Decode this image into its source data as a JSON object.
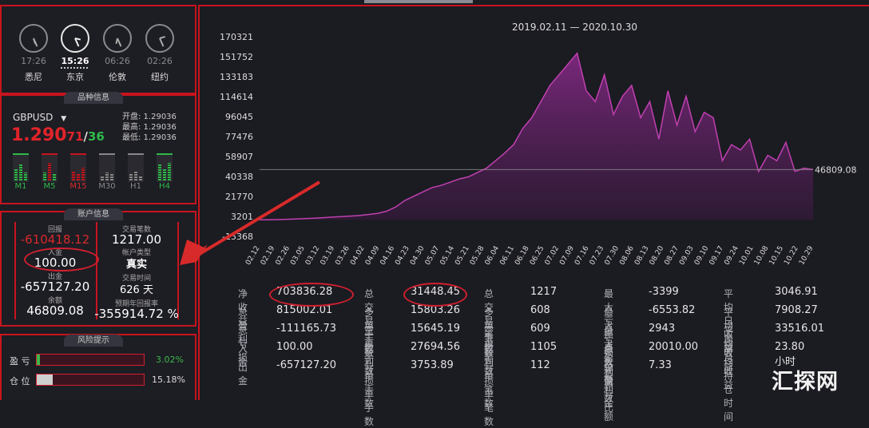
{
  "clocks": [
    {
      "time": "17:26",
      "city": "悉尼"
    },
    {
      "time": "15:26",
      "city": "东京"
    },
    {
      "time": "06:26",
      "city": "伦敦"
    },
    {
      "time": "02:26",
      "city": "纽约"
    }
  ],
  "symbol_section": {
    "title": "品种信息",
    "symbol": "GBPUSD",
    "price_main": "1.290",
    "price_sub": "71",
    "sep": "/",
    "price_sub2": "36",
    "open": "开盘: 1.29036",
    "high": "最高: 1.29036",
    "low": "最低: 1.29036",
    "timeframes": [
      "M1",
      "M5",
      "M15",
      "M30",
      "H1",
      "H4"
    ]
  },
  "account": {
    "title": "账户信息",
    "pnl_label": "回报",
    "pnl": "-610418.12",
    "deposit_label": "入金",
    "deposit": "100.00",
    "withdraw_label": "出金",
    "withdraw": "-657127.20",
    "balance_label": "余额",
    "balance": "46809.08",
    "trades_label": "交易笔数",
    "trades": "1217.00",
    "type_label": "帐户类型",
    "type": "真实",
    "time_label": "交易时间",
    "time": "626 天",
    "return_label": "预期年回报率",
    "return": "-355914.72 %"
  },
  "risk": {
    "title": "风险提示",
    "profit_label": "盈  亏",
    "profit_pct": "3.02%",
    "position_label": "仓  位",
    "position_pct": "15.18%",
    "position_color": "#cfcfcf",
    "profit_color": "#3db84a"
  },
  "chart_data": {
    "type": "area",
    "title": "2019.02.11 — 2020.10.30",
    "last_value_label": "46809.08",
    "yticks": [
      "170321",
      "151752",
      "133183",
      "114614",
      "96045",
      "77476",
      "58907",
      "40338",
      "21770",
      "3201",
      "-15368"
    ],
    "ylim": [
      -15368,
      170321
    ],
    "xticks": [
      "02.12",
      "02.19",
      "02.26",
      "03.05",
      "03.12",
      "03.19",
      "03.26",
      "04.02",
      "04.09",
      "04.16",
      "04.23",
      "04.30",
      "05.07",
      "05.14",
      "05.21",
      "05.28",
      "06.04",
      "06.11",
      "06.18",
      "06.25",
      "07.02",
      "07.09",
      "07.16",
      "07.23",
      "07.30",
      "08.06",
      "08.13",
      "08.20",
      "08.27",
      "09.03",
      "09.10",
      "09.17",
      "09.24",
      "10.01",
      "10.08",
      "10.15",
      "10.22",
      "10.29"
    ],
    "values": [
      0,
      0,
      200,
      500,
      800,
      1200,
      1500,
      2000,
      2500,
      3000,
      3500,
      4000,
      5000,
      6000,
      8000,
      12000,
      18000,
      22000,
      26000,
      30000,
      32000,
      35000,
      38000,
      40000,
      44000,
      48000,
      55000,
      62000,
      70000,
      85000,
      95000,
      110000,
      125000,
      135000,
      145000,
      155000,
      120000,
      110000,
      135000,
      98000,
      115000,
      125000,
      95000,
      110000,
      75000,
      120000,
      88000,
      115000,
      82000,
      100000,
      95000,
      55000,
      70000,
      65000,
      75000,
      45000,
      60000,
      55000,
      72000,
      45000,
      48000,
      46809
    ],
    "line_color": "#c040b0"
  },
  "stats": [
    [
      {
        "k": "净收益",
        "v": "703836.28"
      },
      {
        "k": "总交易手数",
        "v": "31448.45"
      },
      {
        "k": "总交易笔数",
        "v": "1217"
      },
      {
        "k": "最大亏损点数",
        "v": "-3399"
      },
      {
        "k": "平均日收益",
        "v": "3046.91"
      }
    ],
    [
      {
        "k": "总盈利",
        "v": "815002.01"
      },
      {
        "k": "多单手数",
        "v": "15803.26"
      },
      {
        "k": "多单笔数",
        "v": "608"
      },
      {
        "k": "最大亏损金额",
        "v": "-6553.82"
      },
      {
        "k": "平均周收益",
        "v": "7908.27"
      }
    ],
    [
      {
        "k": "总亏损",
        "v": "-111165.73"
      },
      {
        "k": "空单手数",
        "v": "15645.19"
      },
      {
        "k": "空单笔数",
        "v": "609"
      },
      {
        "k": "最大盈利点数",
        "v": "2943"
      },
      {
        "k": "平均月收益",
        "v": "33516.01"
      }
    ],
    [
      {
        "k": "入金",
        "v": "100.00"
      },
      {
        "k": "盈利单手数",
        "v": "27694.56"
      },
      {
        "k": "盈利单笔数",
        "v": "1105"
      },
      {
        "k": "最大盈利金额",
        "v": "20010.00"
      },
      {
        "k": "平均持仓时间",
        "v": "23.80小时"
      }
    ],
    [
      {
        "k": "出金",
        "v": "-657127.20"
      },
      {
        "k": "亏损单手数",
        "v": "3753.89"
      },
      {
        "k": "亏损单笔数",
        "v": "112"
      },
      {
        "k": "总盈亏比",
        "v": "7.33"
      },
      {
        "k": "",
        "v": ""
      }
    ]
  ],
  "watermark": "汇探网"
}
